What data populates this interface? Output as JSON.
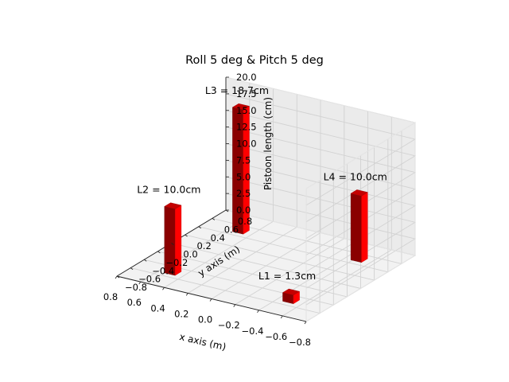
{
  "chart_data": {
    "type": "bar3d",
    "title": "Roll 5 deg & Pitch 5 deg",
    "xlabel": "x axis (m)",
    "ylabel": "y axis (m)",
    "zlabel": "Pistoon length (cm)",
    "xlim": [
      -0.8,
      0.8
    ],
    "ylim": [
      -0.8,
      0.8
    ],
    "zlim": [
      0,
      20
    ],
    "xticks": [
      "−0.8",
      "−0.6",
      "−0.4",
      "−0.2",
      "0.0",
      "0.2",
      "0.4",
      "0.6",
      "0.8"
    ],
    "yticks": [
      "−0.8",
      "−0.6",
      "−0.4",
      "−0.2",
      "0.0",
      "0.2",
      "0.4",
      "0.6",
      "0.8"
    ],
    "zticks": [
      "0.0",
      "2.5",
      "5.0",
      "7.5",
      "10.0",
      "12.5",
      "15.0",
      "17.5",
      "20.0"
    ],
    "grid": true,
    "bar_color": "#ff0000",
    "bars": [
      {
        "label": "L1 = 1.3cm",
        "x": -0.5,
        "y": -0.5,
        "value": 1.3
      },
      {
        "label": "L2 = 10.0cm",
        "x": 0.5,
        "y": -0.5,
        "value": 10.0
      },
      {
        "label": "L3 = 18.7cm",
        "x": 0.5,
        "y": 0.5,
        "value": 18.7
      },
      {
        "label": "L4 = 10.0cm",
        "x": -0.5,
        "y": 0.5,
        "value": 10.0
      }
    ]
  }
}
